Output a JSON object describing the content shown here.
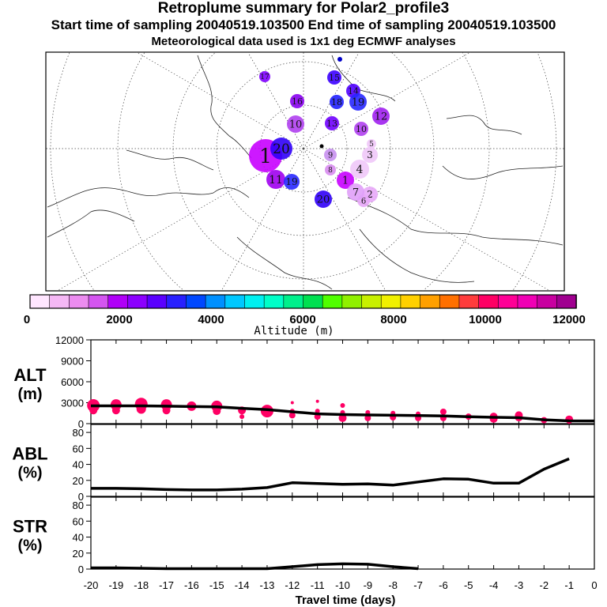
{
  "header": {
    "title": "Retroplume summary for Polar2_profile3",
    "sampling": "Start time of sampling 20040519.103500     End time of sampling 20040519.103500",
    "met": "Meteorological data used is 1x1 deg ECMWF analyses"
  },
  "colorbar": {
    "label": "Altitude (m)",
    "ticks": [
      "0",
      "2000",
      "4000",
      "6000",
      "8000",
      "10000",
      "12000"
    ],
    "colors": [
      "#ffe6ff",
      "#f5b8f5",
      "#ec8cf0",
      "#d455f0",
      "#b000f8",
      "#8c00ff",
      "#5a00ff",
      "#2820ff",
      "#0048ff",
      "#0090ff",
      "#00c8ff",
      "#00f0f0",
      "#00ffc8",
      "#00f08c",
      "#00e050",
      "#50ff00",
      "#90f000",
      "#c8f000",
      "#f0f000",
      "#ffd000",
      "#ffa000",
      "#ff7000",
      "#ff3c3c",
      "#ff0064",
      "#ff0096",
      "#f000b4",
      "#c800a0",
      "#a00090"
    ]
  },
  "map": {
    "clusters": [
      {
        "label": "1",
        "color": "#c800ff"
      },
      {
        "label": "2",
        "color": "#e8a8f8"
      },
      {
        "label": "3",
        "color": "#f0c8f8"
      },
      {
        "label": "4",
        "color": "#f0c8f8"
      },
      {
        "label": "5",
        "color": "#f0c8f8"
      },
      {
        "label": "6",
        "color": "#e8a8f8"
      },
      {
        "label": "7",
        "color": "#e0a0f8"
      },
      {
        "label": "8",
        "color": "#d88cf0"
      },
      {
        "label": "9",
        "color": "#c890f0"
      },
      {
        "label": "10",
        "color": "#b040f0"
      },
      {
        "label": "11",
        "color": "#a000f0"
      },
      {
        "label": "12",
        "color": "#a020f0"
      },
      {
        "label": "13",
        "color": "#7000ff"
      },
      {
        "label": "14",
        "color": "#5000ff"
      },
      {
        "label": "15",
        "color": "#3c00ff"
      },
      {
        "label": "16",
        "color": "#8800f0"
      },
      {
        "label": "17",
        "color": "#8000ff"
      },
      {
        "label": "18",
        "color": "#2020ff"
      },
      {
        "label": "19",
        "color": "#2828ff"
      },
      {
        "label": "20",
        "color": "#3000f8"
      }
    ]
  },
  "chart_data": [
    {
      "type": "line",
      "title": "ALT (m)",
      "panel_label_1": "ALT",
      "panel_label_2": "(m)",
      "ylim": [
        0,
        12000
      ],
      "yticks": [
        0,
        3000,
        6000,
        9000,
        12000
      ],
      "xlim": [
        -20,
        0
      ],
      "x": [
        -20,
        -19,
        -18,
        -17,
        -16,
        -15,
        -14,
        -13,
        -12,
        -11,
        -10,
        -9,
        -8,
        -7,
        -6,
        -5,
        -4,
        -3,
        -2,
        -1,
        0
      ],
      "y": [
        2550,
        2550,
        2550,
        2500,
        2450,
        2400,
        2200,
        2000,
        1700,
        1400,
        1300,
        1250,
        1200,
        1150,
        1100,
        1000,
        900,
        850,
        550,
        400,
        380
      ],
      "scatter_points": [
        {
          "x": -19.9,
          "y": 2600,
          "s": 8
        },
        {
          "x": -19.9,
          "y": 1900,
          "s": 5
        },
        {
          "x": -19.0,
          "y": 2700,
          "s": 7
        },
        {
          "x": -19.0,
          "y": 1900,
          "s": 5
        },
        {
          "x": -18.0,
          "y": 2800,
          "s": 8
        },
        {
          "x": -18.0,
          "y": 2100,
          "s": 6
        },
        {
          "x": -17.0,
          "y": 2700,
          "s": 7
        },
        {
          "x": -17.0,
          "y": 1900,
          "s": 5
        },
        {
          "x": -16.0,
          "y": 2500,
          "s": 6
        },
        {
          "x": -15.0,
          "y": 2500,
          "s": 7
        },
        {
          "x": -15.0,
          "y": 1800,
          "s": 5
        },
        {
          "x": -14.0,
          "y": 1900,
          "s": 5
        },
        {
          "x": -14.0,
          "y": 1000,
          "s": 3
        },
        {
          "x": -13.0,
          "y": 1800,
          "s": 8
        },
        {
          "x": -12.0,
          "y": 3000,
          "s": 2
        },
        {
          "x": -12.0,
          "y": 1800,
          "s": 3
        },
        {
          "x": -12.0,
          "y": 1200,
          "s": 4
        },
        {
          "x": -11.0,
          "y": 3200,
          "s": 2
        },
        {
          "x": -11.0,
          "y": 1800,
          "s": 3
        },
        {
          "x": -11.0,
          "y": 1000,
          "s": 4
        },
        {
          "x": -10.0,
          "y": 2600,
          "s": 3
        },
        {
          "x": -10.0,
          "y": 1600,
          "s": 3
        },
        {
          "x": -10.0,
          "y": 800,
          "s": 5
        },
        {
          "x": -9.0,
          "y": 1600,
          "s": 3
        },
        {
          "x": -9.0,
          "y": 800,
          "s": 4
        },
        {
          "x": -8.0,
          "y": 1500,
          "s": 3
        },
        {
          "x": -8.0,
          "y": 900,
          "s": 4
        },
        {
          "x": -7.0,
          "y": 1400,
          "s": 3
        },
        {
          "x": -7.0,
          "y": 800,
          "s": 4
        },
        {
          "x": -6.0,
          "y": 1700,
          "s": 4
        },
        {
          "x": -6.0,
          "y": 800,
          "s": 4
        },
        {
          "x": -5.0,
          "y": 1000,
          "s": 4
        },
        {
          "x": -4.0,
          "y": 1000,
          "s": 5
        },
        {
          "x": -4.0,
          "y": 700,
          "s": 5
        },
        {
          "x": -3.0,
          "y": 1200,
          "s": 5
        },
        {
          "x": -3.0,
          "y": 900,
          "s": 5
        },
        {
          "x": -2.0,
          "y": 500,
          "s": 4
        },
        {
          "x": -1.0,
          "y": 600,
          "s": 5
        },
        {
          "x": -1.0,
          "y": 300,
          "s": 3
        }
      ]
    },
    {
      "type": "line",
      "title": "ABL (%)",
      "panel_label_1": "ABL",
      "panel_label_2": "(%)",
      "ylim": [
        0,
        90
      ],
      "yticks": [
        0,
        20,
        40,
        60,
        80
      ],
      "xlim": [
        -20,
        0
      ],
      "x": [
        -20,
        -19,
        -18,
        -17,
        -16,
        -15,
        -14,
        -13,
        -12,
        -11,
        -10,
        -9,
        -8,
        -7,
        -6,
        -5,
        -4,
        -3,
        -2,
        -1
      ],
      "y": [
        10,
        10,
        9.5,
        8.5,
        8,
        8,
        9,
        11,
        17,
        16,
        15,
        15.5,
        14,
        18,
        22,
        21.5,
        16.5,
        16.5,
        34,
        47
      ]
    },
    {
      "type": "line",
      "title": "STR (%)",
      "panel_label_1": "STR",
      "panel_label_2": "(%)",
      "ylim": [
        0,
        90
      ],
      "yticks": [
        0,
        20,
        40,
        60,
        80
      ],
      "xlim": [
        -20,
        0
      ],
      "x": [
        -20,
        -19,
        -18,
        -17,
        -16,
        -15,
        -14,
        -13,
        -12,
        -11,
        -10,
        -9,
        -8,
        -7
      ],
      "y": [
        1.5,
        1.5,
        1,
        0.5,
        0.5,
        0.5,
        0.5,
        0.5,
        3,
        5.5,
        6.5,
        6,
        3,
        0.5
      ]
    }
  ],
  "xaxis": {
    "label": "Travel time (days)",
    "ticks": [
      "-20",
      "-19",
      "-18",
      "-17",
      "-16",
      "-15",
      "-14",
      "-13",
      "-12",
      "-11",
      "-10",
      "-9",
      "-8",
      "-7",
      "-6",
      "-5",
      "-4",
      "-3",
      "-2",
      "-1",
      "0"
    ]
  },
  "colors": {
    "scatter": "#ff0064",
    "line": "#000000"
  }
}
